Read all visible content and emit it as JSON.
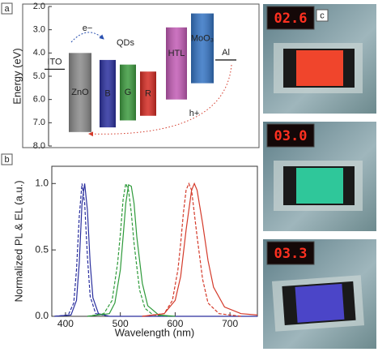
{
  "chart_data": [
    {
      "type": "energy_levels",
      "panel_label": "a",
      "ylabel": "Energy (eV)",
      "ylim": [
        2,
        8
      ],
      "inverted": true,
      "yticks": [
        {
          "value": 2,
          "label": "2.0"
        },
        {
          "value": 3,
          "label": "3.0"
        },
        {
          "value": 4,
          "label": "4.0"
        },
        {
          "value": 5,
          "label": "5.0"
        },
        {
          "value": 6,
          "label": "6.0"
        },
        {
          "value": 7,
          "label": "7.0"
        },
        {
          "value": 8,
          "label": "8.0"
        }
      ],
      "bars": {
        "categories": [
          "ZnO",
          "B",
          "G",
          "R",
          "HTL",
          "MoO₃"
        ],
        "top": [
          4.0,
          4.3,
          4.5,
          4.8,
          2.9,
          2.3
        ],
        "bottom": [
          7.4,
          7.2,
          6.9,
          6.7,
          6.0,
          5.3
        ],
        "colors": [
          "#8a8a8a",
          "#2a2f9e",
          "#3c9a3e",
          "#d42a22",
          "#c25bb5",
          "#3474c4"
        ]
      },
      "levels": {
        "names": [
          "ITO",
          "Al"
        ],
        "values": [
          4.7,
          4.3
        ]
      },
      "annotations": [
        "e−",
        "QDs",
        "h+"
      ]
    },
    {
      "type": "line",
      "panel_label": "b",
      "xlabel": "Wavelength (nm)",
      "ylabel": "Normalized PL & EL (a.u.)",
      "xlim": [
        375,
        750
      ],
      "ylim": [
        0,
        1.13
      ],
      "xticks": [
        400,
        500,
        600,
        700
      ],
      "yticks": [
        {
          "value": 0,
          "label": "0.0"
        },
        {
          "value": 0.5,
          "label": "0.5"
        },
        {
          "value": 1,
          "label": "1.0"
        }
      ],
      "series": [
        {
          "color": "#2a2f9e",
          "dashed": false,
          "x": [
            380,
            410,
            420,
            425,
            430,
            435,
            440,
            445,
            450,
            460,
            480,
            750
          ],
          "values": [
            0,
            0.01,
            0.12,
            0.4,
            0.85,
            1.0,
            0.8,
            0.4,
            0.14,
            0.02,
            0,
            0
          ]
        },
        {
          "color": "#2a2f9e",
          "dashed": true,
          "x": [
            380,
            405,
            415,
            420,
            425,
            430,
            435,
            440,
            445,
            455,
            480
          ],
          "values": [
            0,
            0.01,
            0.1,
            0.35,
            0.75,
            1.0,
            0.85,
            0.45,
            0.15,
            0.02,
            0
          ]
        },
        {
          "color": "#2e9a3a",
          "dashed": false,
          "x": [
            440,
            480,
            490,
            500,
            505,
            510,
            515,
            520,
            525,
            530,
            540,
            550,
            570,
            600
          ],
          "values": [
            0,
            0.02,
            0.1,
            0.35,
            0.6,
            0.85,
            0.99,
            0.98,
            0.85,
            0.6,
            0.25,
            0.08,
            0.01,
            0
          ]
        },
        {
          "color": "#2e9a3a",
          "dashed": true,
          "x": [
            440,
            470,
            485,
            495,
            500,
            505,
            510,
            515,
            520,
            525,
            535,
            545,
            560,
            590
          ],
          "values": [
            0,
            0.02,
            0.12,
            0.4,
            0.62,
            0.88,
            1.0,
            0.95,
            0.78,
            0.55,
            0.2,
            0.06,
            0.01,
            0
          ]
        },
        {
          "color": "#d43a2a",
          "dashed": false,
          "x": [
            540,
            580,
            600,
            610,
            620,
            630,
            635,
            640,
            650,
            660,
            670,
            690,
            720,
            750
          ],
          "values": [
            0,
            0.02,
            0.12,
            0.3,
            0.65,
            0.95,
            1.0,
            0.95,
            0.7,
            0.42,
            0.22,
            0.07,
            0.02,
            0.01
          ]
        },
        {
          "color": "#d43a2a",
          "dashed": true,
          "x": [
            540,
            580,
            595,
            605,
            610,
            615,
            620,
            625,
            630,
            640,
            650,
            660,
            680,
            720
          ],
          "values": [
            0,
            0.02,
            0.12,
            0.35,
            0.55,
            0.78,
            0.95,
            1.0,
            0.95,
            0.6,
            0.28,
            0.1,
            0.02,
            0
          ]
        }
      ]
    }
  ],
  "photos": {
    "panel_label": "c",
    "readouts": [
      "02.6",
      "03.0",
      "03.3"
    ],
    "emission_colors": [
      "#f0452c",
      "#2fc79a",
      "#4b45c8"
    ]
  }
}
